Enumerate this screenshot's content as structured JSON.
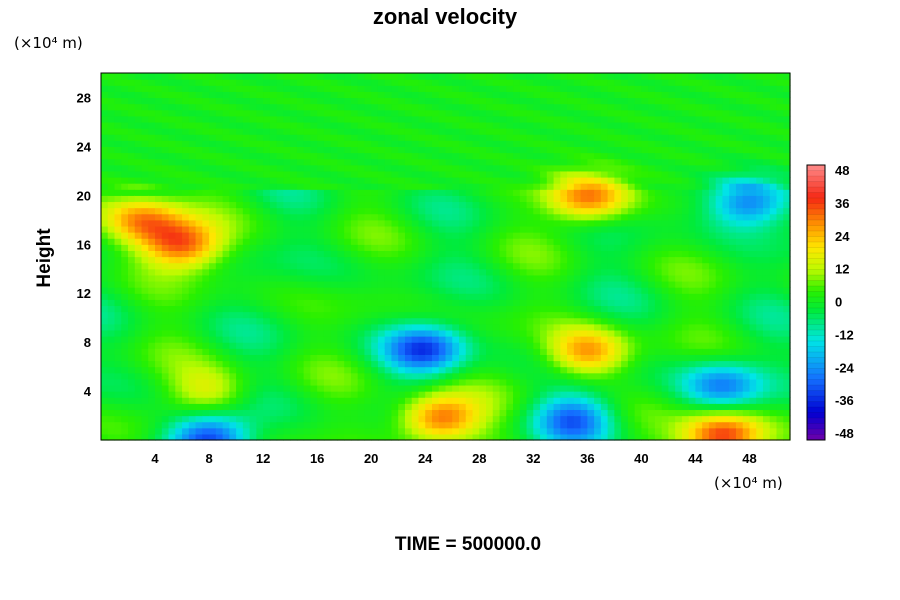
{
  "chart_data": {
    "type": "heatmap",
    "title": "zonal velocity",
    "ylabel": "Height",
    "x_unit_label": "(×10⁴ m)",
    "y_unit_label": "(×10⁴ m)",
    "footer": "TIME = 500000.0",
    "xlim": [
      0,
      51
    ],
    "ylim": [
      0,
      30
    ],
    "x_ticks": [
      4,
      8,
      12,
      16,
      20,
      24,
      28,
      32,
      36,
      40,
      44,
      48
    ],
    "y_ticks": [
      4,
      8,
      12,
      16,
      20,
      24,
      28
    ],
    "colorbar": {
      "range": [
        -50,
        50
      ],
      "ticks": [
        48,
        36,
        24,
        12,
        0,
        -12,
        -24,
        -36,
        -48
      ]
    },
    "features": [
      {
        "x": 25,
        "y": 1.8,
        "value": 36
      },
      {
        "x": 36,
        "y": 7.2,
        "value": 28
      },
      {
        "x": 24,
        "y": 7.5,
        "value": -30
      },
      {
        "x": 35,
        "y": 1.8,
        "value": -26
      },
      {
        "x": 46,
        "y": 4.5,
        "value": -24
      },
      {
        "x": 46,
        "y": 0.3,
        "value": 40
      },
      {
        "x": 8,
        "y": 4.0,
        "value": 16
      },
      {
        "x": 6,
        "y": 16,
        "value": 34
      },
      {
        "x": 3,
        "y": 18,
        "value": 28
      },
      {
        "x": 48,
        "y": 19.5,
        "value": -30
      },
      {
        "x": 36,
        "y": 19.8,
        "value": 30
      },
      {
        "x": 8,
        "y": 0.2,
        "value": -34
      }
    ]
  }
}
